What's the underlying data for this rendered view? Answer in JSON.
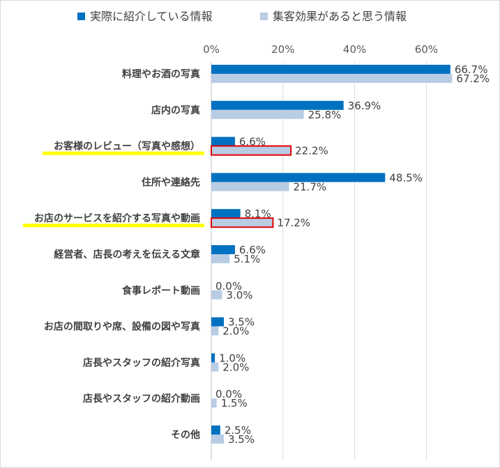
{
  "chart_data": {
    "type": "bar",
    "orientation": "horizontal",
    "categories": [
      "料理やお酒の写真",
      "店内の写真",
      "お客様のレビュー（写真や感想）",
      "住所や連絡先",
      "お店のサービスを紹介する写真や動画",
      "経営者、店長の考えを伝える文章",
      "食事レポート動画",
      "お店の間取りや席、設備の図や写真",
      "店長やスタッフの紹介写真",
      "店長やスタッフの紹介動画",
      "その他"
    ],
    "series": [
      {
        "name": "実際に紹介している情報",
        "color": "#0070c0",
        "values": [
          66.7,
          36.9,
          6.6,
          48.5,
          8.1,
          6.6,
          0.0,
          3.5,
          1.0,
          0.0,
          2.5
        ],
        "labels": [
          "66.7%",
          "36.9%",
          "6.6%",
          "48.5%",
          "8.1%",
          "6.6%",
          "0.0%",
          "3.5%",
          "1.0%",
          "0.0%",
          "2.5%"
        ]
      },
      {
        "name": "集客効果があると思う情報",
        "color": "#b8cce4",
        "values": [
          67.2,
          25.8,
          22.2,
          21.7,
          17.2,
          5.1,
          3.0,
          2.0,
          2.0,
          1.5,
          3.5
        ],
        "labels": [
          "67.2%",
          "25.8%",
          "22.2%",
          "21.7%",
          "17.2%",
          "5.1%",
          "3.0%",
          "2.0%",
          "2.0%",
          "1.5%",
          "3.5%"
        ]
      }
    ],
    "xlim": [
      0,
      80
    ],
    "xticks": [
      0,
      20,
      40,
      60
    ],
    "xtick_labels": [
      "0%",
      "20%",
      "40%",
      "60%"
    ],
    "grid": true,
    "legend_position": "top",
    "highlighted_categories": [
      2,
      4
    ],
    "highlight_underline_color": "#ffff00",
    "highlight_box_color": "#e00000"
  }
}
